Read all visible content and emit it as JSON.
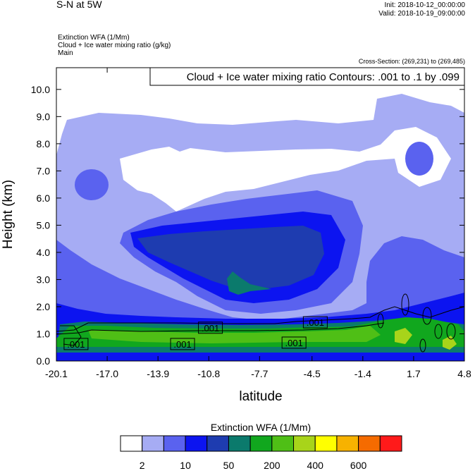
{
  "header": {
    "title": "S-N at 5W",
    "init": "Init: 2018-10-12_00:00:00",
    "valid": "Valid: 2018-10-19_09:00:00",
    "field1": "Extinction WFA   (1/Mm)",
    "field2": "Cloud + Ice water mixing ratio   (g/kg)",
    "field3": "Main",
    "cross_section": "Cross-Section: (269,231) to (269,485)"
  },
  "chart_data": {
    "type": "heatmap",
    "title": "S-N at 5W",
    "xlabel": "latitude",
    "ylabel": "Height (km)",
    "xlim": [
      -20.1,
      4.8
    ],
    "ylim": [
      0.0,
      10.8
    ],
    "x_ticks": [
      "-20.1",
      "-17.0",
      "-13.9",
      "-10.8",
      "-7.7",
      "-4.5",
      "-1.4",
      "1.7",
      "4.8"
    ],
    "y_ticks": [
      "0.0",
      "1.0",
      "2.0",
      "3.0",
      "4.0",
      "5.0",
      "6.0",
      "7.0",
      "8.0",
      "9.0",
      "10.0"
    ],
    "contour_title": "Cloud + Ice water mixing ratio Contours: .001 to .1 by .099",
    "contour_labels": [
      {
        "text": ".001",
        "x": -18.9,
        "y": 0.6
      },
      {
        "text": ".001",
        "x": -12.4,
        "y": 0.6
      },
      {
        "text": ".001",
        "x": -10.7,
        "y": 1.2
      },
      {
        "text": ".001",
        "x": -5.6,
        "y": 0.65
      },
      {
        "text": ".001",
        "x": -4.3,
        "y": 1.4
      }
    ],
    "colorbar": {
      "title": "Extinction WFA  (1/Mm)",
      "colors": [
        "#ffffff",
        "#a6acf4",
        "#5a62ef",
        "#0c14f0",
        "#1e3cb0",
        "#0b7a6c",
        "#11a71e",
        "#4fbf16",
        "#a8d41a",
        "#ffff00",
        "#f7b200",
        "#f56b00",
        "#ff1a1a"
      ],
      "labels": [
        "2",
        "10",
        "50",
        "200",
        "400",
        "600"
      ]
    }
  }
}
